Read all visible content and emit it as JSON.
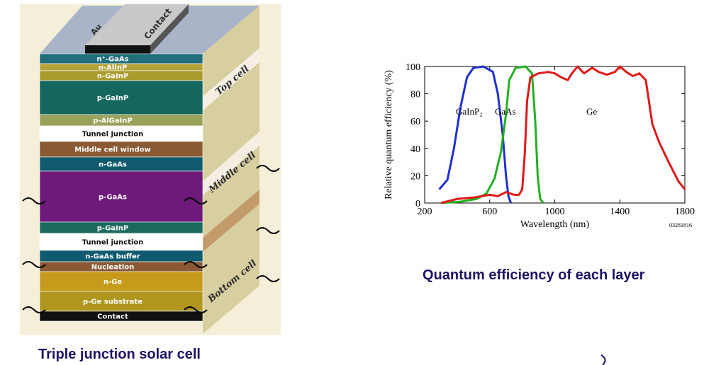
{
  "solar_cell": {
    "caption": "Triple junction solar cell",
    "contact_top": {
      "au": "Au",
      "contact": "Contact"
    },
    "layers": [
      {
        "label": "n⁺-GaAs",
        "color": "#1f6e7a"
      },
      {
        "label": "n-AlInP",
        "color": "#b5a33a"
      },
      {
        "label": "n-GaInP",
        "color": "#a99b2c"
      },
      {
        "label": "p-GaInP",
        "color": "#14665e"
      },
      {
        "label": "p-AlGaInP",
        "color": "#9aa15a"
      },
      {
        "label": "Tunnel junction",
        "color": "#ffffff"
      },
      {
        "label": "Middle cell window",
        "color": "#8a5a35"
      },
      {
        "label": "n-GaAs",
        "color": "#0f5a6e"
      },
      {
        "label": "p-GaAs",
        "color": "#6e1a7a"
      },
      {
        "label": "p-GaInP",
        "color": "#1a6b5e"
      },
      {
        "label": "Tunnel junction",
        "color": "#ffffff"
      },
      {
        "label": "n-GaAs buffer",
        "color": "#0f5a6e"
      },
      {
        "label": "Nucleation",
        "color": "#8a5a35"
      },
      {
        "label": "n-Ge",
        "color": "#c69a1a"
      },
      {
        "label": "p-Ge substrate",
        "color": "#b0961f"
      },
      {
        "label": "Contact",
        "color": "#111111"
      }
    ],
    "side_labels": [
      "Top cell",
      "Middle cell",
      "Bottom cell"
    ]
  },
  "qe_caption": "Quantum efficiency of each layer",
  "chart_data": {
    "type": "line",
    "title": "",
    "xlabel": "Wavelength (nm)",
    "ylabel": "Relative quantum efficiency (%)",
    "xlim": [
      200,
      1800
    ],
    "ylim": [
      0,
      100
    ],
    "xticks": [
      200,
      600,
      1000,
      1400,
      1800
    ],
    "yticks": [
      0,
      20,
      40,
      60,
      80,
      100
    ],
    "grid": false,
    "figure_code": "03281816",
    "series": [
      {
        "name": "GaInP₂",
        "color": "#1f2fd0",
        "points": [
          [
            290,
            10
          ],
          [
            340,
            17
          ],
          [
            380,
            40
          ],
          [
            420,
            70
          ],
          [
            460,
            92
          ],
          [
            500,
            99
          ],
          [
            560,
            100
          ],
          [
            620,
            96
          ],
          [
            650,
            80
          ],
          [
            680,
            50
          ],
          [
            700,
            20
          ],
          [
            715,
            5
          ],
          [
            730,
            0
          ]
        ]
      },
      {
        "name": "GaAs",
        "color": "#22b022",
        "points": [
          [
            300,
            0
          ],
          [
            420,
            1
          ],
          [
            520,
            3
          ],
          [
            580,
            7
          ],
          [
            630,
            18
          ],
          [
            670,
            38
          ],
          [
            700,
            65
          ],
          [
            720,
            90
          ],
          [
            760,
            99
          ],
          [
            820,
            100
          ],
          [
            860,
            95
          ],
          [
            880,
            60
          ],
          [
            895,
            20
          ],
          [
            910,
            3
          ],
          [
            930,
            0
          ]
        ]
      },
      {
        "name": "Ge",
        "color": "#e01818",
        "points": [
          [
            300,
            0
          ],
          [
            400,
            3
          ],
          [
            500,
            4
          ],
          [
            600,
            6
          ],
          [
            650,
            5
          ],
          [
            700,
            8
          ],
          [
            750,
            6
          ],
          [
            780,
            6
          ],
          [
            800,
            10
          ],
          [
            815,
            35
          ],
          [
            830,
            75
          ],
          [
            850,
            92
          ],
          [
            900,
            95
          ],
          [
            960,
            96
          ],
          [
            1000,
            95
          ],
          [
            1040,
            92
          ],
          [
            1080,
            90
          ],
          [
            1100,
            94
          ],
          [
            1140,
            100
          ],
          [
            1180,
            95
          ],
          [
            1230,
            99
          ],
          [
            1270,
            96
          ],
          [
            1320,
            94
          ],
          [
            1370,
            96
          ],
          [
            1400,
            100
          ],
          [
            1440,
            96
          ],
          [
            1480,
            93
          ],
          [
            1520,
            95
          ],
          [
            1560,
            90
          ],
          [
            1600,
            58
          ],
          [
            1640,
            45
          ],
          [
            1700,
            30
          ],
          [
            1760,
            16
          ],
          [
            1800,
            10
          ]
        ]
      }
    ]
  }
}
